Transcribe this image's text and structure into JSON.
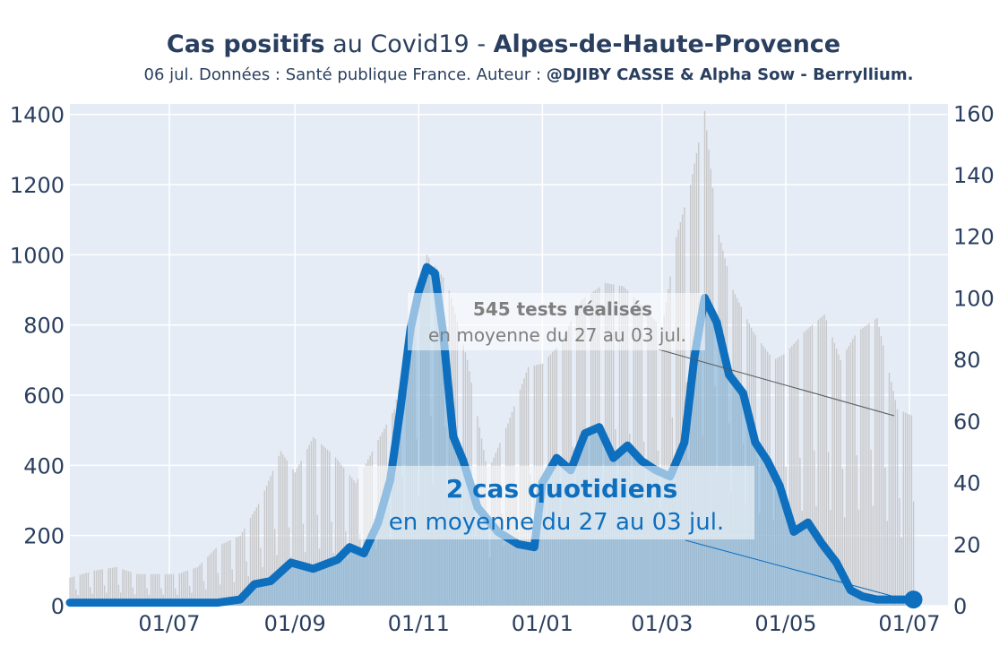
{
  "header": {
    "title_part1": "Cas positifs",
    "title_part2": " au Covid19 - ",
    "title_part3": "Alpes-de-Haute-Provence",
    "subtitle_part1": "06 jul. Données : Santé publique France. Auteur : ",
    "subtitle_part2": "@DJIBY CASSE & Alpha Sow - Berryllium."
  },
  "annotations": {
    "tests_title": "545 tests réalisés",
    "tests_sub": "en moyenne du 27 au 03 jul.",
    "cases_title": "2 cas quotidiens",
    "cases_sub": "en moyenne du 27 au 03 jul."
  },
  "colors": {
    "plot_background": "#e5ecf6",
    "cases_line": "#0e6fbf",
    "cases_fill": "#7aaed6",
    "tests_bars": "#c4c4c4",
    "text": "#2a3f5f"
  },
  "chart_data": {
    "type": "line",
    "title": "Cas positifs au Covid19 - Alpes-de-Haute-Provence",
    "x_ticks": [
      "01/07",
      "01/09",
      "01/11",
      "01/01",
      "01/03",
      "01/05",
      "01/07"
    ],
    "x_tick_dates": [
      "2020-07-01",
      "2020-09-01",
      "2020-11-01",
      "2021-01-01",
      "2021-03-01",
      "2021-05-01",
      "2021-07-01"
    ],
    "x_range": [
      "2020-05-13",
      "2021-07-20"
    ],
    "y_left": {
      "range": [
        0,
        1430
      ],
      "ticks": [
        0,
        200,
        400,
        600,
        800,
        1000,
        1200,
        1400
      ],
      "label": ""
    },
    "y_right": {
      "range": [
        0,
        163
      ],
      "ticks": [
        0,
        20,
        40,
        60,
        80,
        100,
        120,
        140,
        160
      ],
      "label": ""
    },
    "grid": true,
    "series": [
      {
        "kind": "tests_bars_daily",
        "axis": "left",
        "x": [
          "2020-05-13",
          "2020-05-25",
          "2020-06-05",
          "2020-06-15",
          "2020-06-25",
          "2020-07-05",
          "2020-07-15",
          "2020-07-25",
          "2020-08-05",
          "2020-08-15",
          "2020-08-25",
          "2020-09-01",
          "2020-09-10",
          "2020-09-20",
          "2020-10-01",
          "2020-10-10",
          "2020-10-20",
          "2020-10-28",
          "2020-11-05",
          "2020-11-15",
          "2020-11-25",
          "2020-12-05",
          "2020-12-15",
          "2020-12-25",
          "2021-01-01",
          "2021-01-10",
          "2021-01-20",
          "2021-02-01",
          "2021-02-10",
          "2021-02-20",
          "2021-03-01",
          "2021-03-08",
          "2021-03-15",
          "2021-03-22",
          "2021-03-28",
          "2021-04-05",
          "2021-04-15",
          "2021-04-25",
          "2021-05-01",
          "2021-05-10",
          "2021-05-20",
          "2021-05-28",
          "2021-06-05",
          "2021-06-15",
          "2021-06-25",
          "2021-07-03"
        ],
        "values": [
          80,
          100,
          110,
          90,
          90,
          90,
          110,
          170,
          200,
          300,
          440,
          380,
          480,
          430,
          350,
          450,
          560,
          780,
          1000,
          920,
          700,
          380,
          520,
          680,
          690,
          750,
          870,
          920,
          910,
          850,
          790,
          1050,
          1200,
          1410,
          1080,
          900,
          780,
          700,
          720,
          780,
          830,
          700,
          780,
          820,
          560,
          540
        ]
      },
      {
        "kind": "cases_7day_average",
        "axis": "right",
        "x": [
          "2020-05-13",
          "2020-06-01",
          "2020-06-20",
          "2020-07-10",
          "2020-07-25",
          "2020-08-05",
          "2020-08-12",
          "2020-08-20",
          "2020-08-30",
          "2020-09-10",
          "2020-09-22",
          "2020-09-28",
          "2020-10-05",
          "2020-10-12",
          "2020-10-18",
          "2020-10-23",
          "2020-10-28",
          "2020-11-01",
          "2020-11-05",
          "2020-11-09",
          "2020-11-13",
          "2020-11-18",
          "2020-11-23",
          "2020-11-30",
          "2020-12-10",
          "2020-12-20",
          "2020-12-28",
          "2021-01-01",
          "2021-01-08",
          "2021-01-15",
          "2021-01-22",
          "2021-01-29",
          "2021-02-05",
          "2021-02-12",
          "2021-02-19",
          "2021-02-26",
          "2021-03-05",
          "2021-03-12",
          "2021-03-17",
          "2021-03-22",
          "2021-03-28",
          "2021-04-03",
          "2021-04-10",
          "2021-04-16",
          "2021-04-22",
          "2021-04-28",
          "2021-05-05",
          "2021-05-12",
          "2021-05-19",
          "2021-05-26",
          "2021-06-02",
          "2021-06-08",
          "2021-06-15",
          "2021-06-22",
          "2021-06-29",
          "2021-07-03"
        ],
        "values": [
          1,
          1,
          1,
          1,
          1,
          2,
          7,
          8,
          14,
          12,
          15,
          19,
          17,
          27,
          41,
          64,
          90,
          102,
          110,
          108,
          89,
          55,
          47,
          32,
          24,
          20,
          19,
          40,
          48,
          44,
          56,
          58,
          48,
          52,
          47,
          44,
          42,
          53,
          81,
          100,
          92,
          75,
          69,
          53,
          47,
          39,
          24,
          27,
          20,
          14,
          5,
          3,
          2,
          2,
          2,
          2
        ]
      }
    ]
  }
}
